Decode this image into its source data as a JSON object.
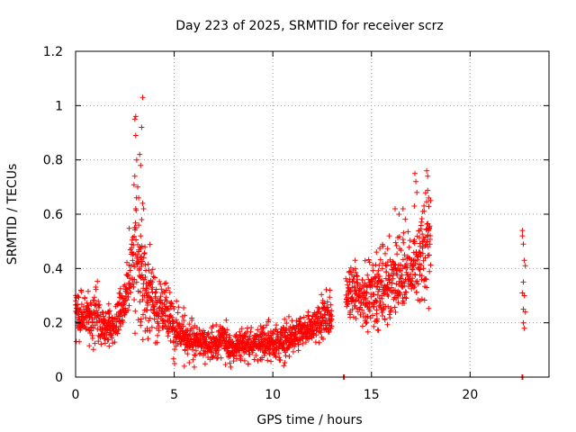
{
  "chart_data": {
    "type": "scatter",
    "title": "Day 223 of 2025, SRMTID for receiver scrz",
    "xlabel": "GPS time / hours",
    "ylabel": "SRMTID / TECUs",
    "xlim": [
      0,
      24
    ],
    "ylim": [
      0,
      1.2
    ],
    "xticks": [
      0,
      5,
      10,
      15,
      20
    ],
    "yticks": [
      0,
      0.2,
      0.4,
      0.6,
      0.8,
      1.0,
      1.2
    ],
    "xtick_labels": [
      "0",
      "5",
      "10",
      "15",
      "20"
    ],
    "ytick_labels": [
      "0",
      "0.2",
      "0.4",
      "0.6",
      "0.8",
      "1",
      "1.2"
    ],
    "grid": true,
    "marker": "+",
    "color": "#ff0000",
    "series": [
      {
        "name": "SRMTID",
        "envelope": [
          {
            "x": 0.0,
            "lo": 0.13,
            "hi": 0.32
          },
          {
            "x": 0.5,
            "lo": 0.12,
            "hi": 0.31
          },
          {
            "x": 1.0,
            "lo": 0.09,
            "hi": 0.38
          },
          {
            "x": 1.5,
            "lo": 0.09,
            "hi": 0.26
          },
          {
            "x": 2.0,
            "lo": 0.12,
            "hi": 0.27
          },
          {
            "x": 2.5,
            "lo": 0.16,
            "hi": 0.42
          },
          {
            "x": 3.0,
            "lo": 0.16,
            "hi": 0.72
          },
          {
            "x": 3.5,
            "lo": 0.15,
            "hi": 0.55
          },
          {
            "x": 4.0,
            "lo": 0.12,
            "hi": 0.42
          },
          {
            "x": 4.5,
            "lo": 0.12,
            "hi": 0.38
          },
          {
            "x": 5.0,
            "lo": 0.06,
            "hi": 0.3
          },
          {
            "x": 5.5,
            "lo": 0.05,
            "hi": 0.25
          },
          {
            "x": 6.0,
            "lo": 0.04,
            "hi": 0.22
          },
          {
            "x": 6.5,
            "lo": 0.04,
            "hi": 0.21
          },
          {
            "x": 7.0,
            "lo": 0.04,
            "hi": 0.2
          },
          {
            "x": 7.5,
            "lo": 0.04,
            "hi": 0.22
          },
          {
            "x": 8.0,
            "lo": 0.04,
            "hi": 0.17
          },
          {
            "x": 8.5,
            "lo": 0.05,
            "hi": 0.19
          },
          {
            "x": 9.0,
            "lo": 0.05,
            "hi": 0.2
          },
          {
            "x": 9.5,
            "lo": 0.05,
            "hi": 0.2
          },
          {
            "x": 10.0,
            "lo": 0.05,
            "hi": 0.21
          },
          {
            "x": 10.5,
            "lo": 0.05,
            "hi": 0.21
          },
          {
            "x": 11.0,
            "lo": 0.05,
            "hi": 0.22
          },
          {
            "x": 11.5,
            "lo": 0.08,
            "hi": 0.25
          },
          {
            "x": 12.0,
            "lo": 0.1,
            "hi": 0.26
          },
          {
            "x": 12.5,
            "lo": 0.12,
            "hi": 0.33
          },
          {
            "x": 13.0,
            "lo": 0.13,
            "hi": 0.32
          }
        ],
        "envelope_late": [
          {
            "x": 13.7,
            "lo": 0.17,
            "hi": 0.42
          },
          {
            "x": 14.0,
            "lo": 0.17,
            "hi": 0.44
          },
          {
            "x": 14.5,
            "lo": 0.15,
            "hi": 0.45
          },
          {
            "x": 15.0,
            "lo": 0.13,
            "hi": 0.47
          },
          {
            "x": 15.5,
            "lo": 0.15,
            "hi": 0.5
          },
          {
            "x": 16.0,
            "lo": 0.15,
            "hi": 0.55
          },
          {
            "x": 16.5,
            "lo": 0.18,
            "hi": 0.55
          },
          {
            "x": 17.0,
            "lo": 0.22,
            "hi": 0.6
          },
          {
            "x": 17.5,
            "lo": 0.25,
            "hi": 0.65
          },
          {
            "x": 18.0,
            "lo": 0.28,
            "hi": 0.72
          }
        ],
        "outliers": [
          {
            "x": 3.05,
            "y": 0.96
          },
          {
            "x": 3.0,
            "y": 0.95
          },
          {
            "x": 3.05,
            "y": 0.89
          },
          {
            "x": 3.1,
            "y": 0.8
          },
          {
            "x": 3.25,
            "y": 0.82
          },
          {
            "x": 3.3,
            "y": 0.78
          },
          {
            "x": 3.35,
            "y": 0.92
          },
          {
            "x": 3.4,
            "y": 1.03
          },
          {
            "x": 3.2,
            "y": 0.66
          },
          {
            "x": 3.0,
            "y": 0.74
          },
          {
            "x": 3.15,
            "y": 0.7
          },
          {
            "x": 3.4,
            "y": 0.64
          },
          {
            "x": 3.45,
            "y": 0.62
          },
          {
            "x": 3.05,
            "y": 0.62
          },
          {
            "x": 3.2,
            "y": 0.56
          },
          {
            "x": 3.35,
            "y": 0.58
          },
          {
            "x": 3.3,
            "y": 0.52
          },
          {
            "x": 17.8,
            "y": 0.76
          },
          {
            "x": 17.85,
            "y": 0.74
          },
          {
            "x": 17.2,
            "y": 0.75
          },
          {
            "x": 17.25,
            "y": 0.72
          },
          {
            "x": 17.3,
            "y": 0.68
          },
          {
            "x": 17.9,
            "y": 0.66
          },
          {
            "x": 18.0,
            "y": 0.65
          },
          {
            "x": 16.2,
            "y": 0.62
          },
          {
            "x": 16.4,
            "y": 0.6
          },
          {
            "x": 16.6,
            "y": 0.62
          },
          {
            "x": 17.6,
            "y": 0.61
          },
          {
            "x": 22.65,
            "y": 0.54
          },
          {
            "x": 22.65,
            "y": 0.52
          },
          {
            "x": 22.7,
            "y": 0.49
          },
          {
            "x": 22.75,
            "y": 0.43
          },
          {
            "x": 22.8,
            "y": 0.41
          },
          {
            "x": 22.7,
            "y": 0.35
          },
          {
            "x": 22.65,
            "y": 0.31
          },
          {
            "x": 22.75,
            "y": 0.3
          },
          {
            "x": 22.7,
            "y": 0.25
          },
          {
            "x": 22.8,
            "y": 0.24
          },
          {
            "x": 22.7,
            "y": 0.2
          },
          {
            "x": 22.75,
            "y": 0.18
          },
          {
            "x": 13.6,
            "y": 0.0
          },
          {
            "x": 13.62,
            "y": 0.0
          },
          {
            "x": 13.58,
            "y": 0.0
          },
          {
            "x": 22.65,
            "y": 0.0
          },
          {
            "x": 22.67,
            "y": 0.0
          },
          {
            "x": 22.63,
            "y": 0.0
          }
        ]
      }
    ]
  }
}
